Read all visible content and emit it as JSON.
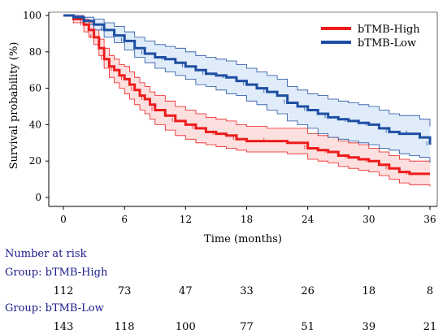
{
  "chart_data": {
    "type": "line",
    "subtype": "kaplan-meier",
    "xlabel": "Time (months)",
    "ylabel": "Survival probability (%)",
    "xlim": [
      0,
      36
    ],
    "ylim": [
      0,
      100
    ],
    "x_ticks": [
      0,
      6,
      12,
      18,
      24,
      30,
      36
    ],
    "y_ticks": [
      0,
      20,
      40,
      60,
      80,
      100
    ],
    "grid": false,
    "legend_position": "top-right",
    "series": [
      {
        "name": "bTMB-High",
        "color": "#ee1c1c",
        "band_fill": "#fbd5d5",
        "x": [
          0,
          1,
          2,
          2.5,
          3,
          3.5,
          4,
          4.5,
          5,
          5.5,
          6,
          6.5,
          7,
          7.5,
          8,
          8.5,
          9,
          10,
          11,
          12,
          13,
          14,
          15,
          16,
          17,
          18,
          20,
          22,
          24,
          25,
          26,
          27,
          28,
          29,
          30,
          31,
          32,
          33,
          34,
          36
        ],
        "y": [
          100,
          98,
          95,
          92,
          88,
          82,
          76,
          72,
          70,
          67,
          65,
          62,
          59,
          56,
          54,
          51,
          48,
          45,
          42,
          40,
          38,
          36,
          35,
          34,
          32,
          31,
          31,
          30,
          27,
          26,
          25,
          23,
          22,
          21,
          20,
          18,
          16,
          14,
          13,
          13
        ],
        "lower": [
          100,
          96,
          91,
          88,
          84,
          78,
          71,
          66,
          63,
          60,
          57,
          54,
          51,
          48,
          46,
          43,
          40,
          37,
          34,
          32,
          30,
          29,
          28,
          27,
          26,
          25,
          25,
          24,
          21,
          20,
          19,
          17,
          16,
          15,
          14,
          12,
          10,
          8,
          7,
          6
        ],
        "upper": [
          100,
          100,
          98,
          96,
          92,
          87,
          82,
          78,
          76,
          73,
          72,
          69,
          66,
          63,
          61,
          58,
          56,
          53,
          50,
          48,
          46,
          44,
          43,
          42,
          40,
          39,
          38,
          38,
          35,
          34,
          33,
          31,
          30,
          29,
          27,
          25,
          23,
          21,
          20,
          20
        ]
      },
      {
        "name": "bTMB-Low",
        "color": "#1f4fa3",
        "band_fill": "#d6e6f7",
        "x": [
          0,
          1,
          2,
          3,
          4,
          5,
          6,
          7,
          8,
          9,
          10,
          11,
          12,
          13,
          14,
          15,
          16,
          17,
          18,
          19,
          20,
          21,
          22,
          23,
          24,
          25,
          26,
          27,
          28,
          29,
          30,
          31,
          32,
          33,
          34,
          35,
          36
        ],
        "y": [
          100,
          99,
          97,
          95,
          92,
          89,
          86,
          82,
          79,
          77,
          76,
          74,
          72,
          70,
          68,
          67,
          66,
          64,
          62,
          60,
          58,
          56,
          52,
          50,
          48,
          46,
          44,
          43,
          42,
          41,
          40,
          38,
          36,
          35,
          35,
          33,
          29
        ],
        "lower": [
          100,
          98,
          95,
          92,
          88,
          85,
          81,
          77,
          74,
          71,
          69,
          67,
          65,
          62,
          61,
          59,
          57,
          56,
          53,
          51,
          48,
          46,
          42,
          40,
          38,
          35,
          33,
          32,
          31,
          30,
          29,
          27,
          26,
          24,
          23,
          22,
          19
        ],
        "upper": [
          100,
          100,
          99,
          98,
          96,
          94,
          91,
          88,
          86,
          84,
          83,
          82,
          80,
          78,
          77,
          76,
          75,
          73,
          71,
          69,
          67,
          65,
          61,
          59,
          57,
          56,
          54,
          53,
          52,
          51,
          50,
          48,
          46,
          45,
          45,
          43,
          39
        ]
      }
    ]
  },
  "risk_table": {
    "title": "Number at risk",
    "times": [
      0,
      6,
      12,
      18,
      24,
      30,
      36
    ],
    "groups": [
      {
        "label": "Group: bTMB-High",
        "counts": [
          "112",
          "73",
          "47",
          "33",
          "26",
          "18",
          "8"
        ]
      },
      {
        "label": "Group: bTMB-Low",
        "counts": [
          "143",
          "118",
          "100",
          "77",
          "51",
          "39",
          "21"
        ]
      }
    ]
  }
}
